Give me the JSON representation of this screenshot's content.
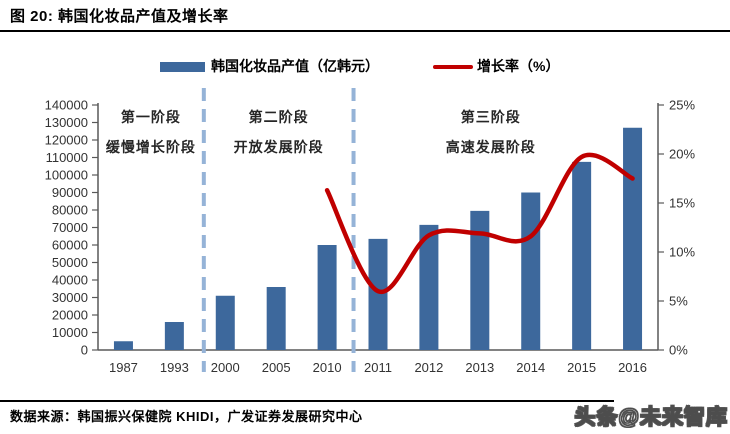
{
  "header": {
    "title": "图 20:  韩国化妆品产值及增长率"
  },
  "legend": {
    "bars_label": "韩国化妆品产值（亿韩元）",
    "line_label": "增长率（%）"
  },
  "footer": {
    "source": "数据来源：韩国振兴保健院 KHIDI，广发证券发展研究中心",
    "watermark": "头条@未来智库"
  },
  "colors": {
    "bar": "#3D689C",
    "line": "#C00000",
    "divider": "#95B3D7",
    "axis": "#595959",
    "tick_text": "#333333",
    "annotation_text": "#262626"
  },
  "chart_data": {
    "type": "bar",
    "subtype": "bar+line combo",
    "title": "韩国化妆品产值及增长率",
    "categories": [
      "1987",
      "1993",
      "2000",
      "2005",
      "2010",
      "2011",
      "2012",
      "2013",
      "2014",
      "2015",
      "2016"
    ],
    "series": [
      {
        "name": "韩国化妆品产值（亿韩元）",
        "type": "bar",
        "axis": "left",
        "values": [
          5000,
          16000,
          31000,
          36000,
          60000,
          63500,
          71500,
          79500,
          90000,
          107500,
          127000
        ]
      },
      {
        "name": "增长率（%）",
        "type": "line",
        "axis": "right",
        "values": [
          null,
          null,
          null,
          null,
          16.3,
          6.0,
          11.7,
          11.9,
          11.6,
          19.7,
          17.5
        ]
      }
    ],
    "left_axis": {
      "min": 0,
      "max": 140000,
      "step": 10000
    },
    "right_axis": {
      "min": 0,
      "max": 25,
      "step": 5,
      "suffix": "%"
    },
    "grid": false,
    "legend_position": "top",
    "phase_dividers_after_category_index": [
      1,
      4
    ],
    "annotations": [
      {
        "line1": "第一阶段",
        "line2": "缓慢增长阶段"
      },
      {
        "line1": "第二阶段",
        "line2": "开放发展阶段"
      },
      {
        "line1": "第三阶段",
        "line2": "高速发展阶段"
      }
    ]
  }
}
